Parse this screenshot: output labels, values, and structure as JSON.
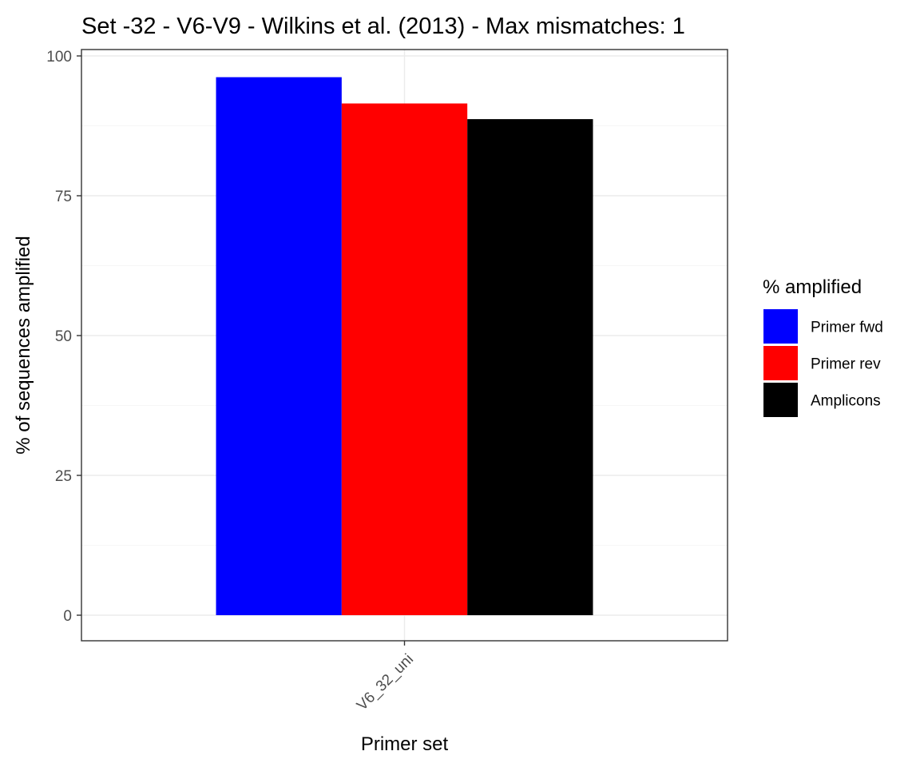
{
  "chart_data": {
    "type": "bar",
    "title": "Set -32 - V6-V9 - Wilkins et al. (2013) - Max mismatches: 1",
    "xlabel": "Primer set",
    "ylabel": "% of sequences amplified",
    "categories": [
      "V6_32_uni"
    ],
    "series": [
      {
        "name": "Primer fwd",
        "color": "#0000ff",
        "values": [
          96.2
        ]
      },
      {
        "name": "Primer rev",
        "color": "#ff0000",
        "values": [
          91.5
        ]
      },
      {
        "name": "Amplicons",
        "color": "#000000",
        "values": [
          88.7
        ]
      }
    ],
    "ylim": [
      -4.8,
      101
    ],
    "yticks": [
      0,
      25,
      50,
      75,
      100
    ],
    "grid": true,
    "legend": {
      "title": "% amplified",
      "position": "right"
    }
  }
}
